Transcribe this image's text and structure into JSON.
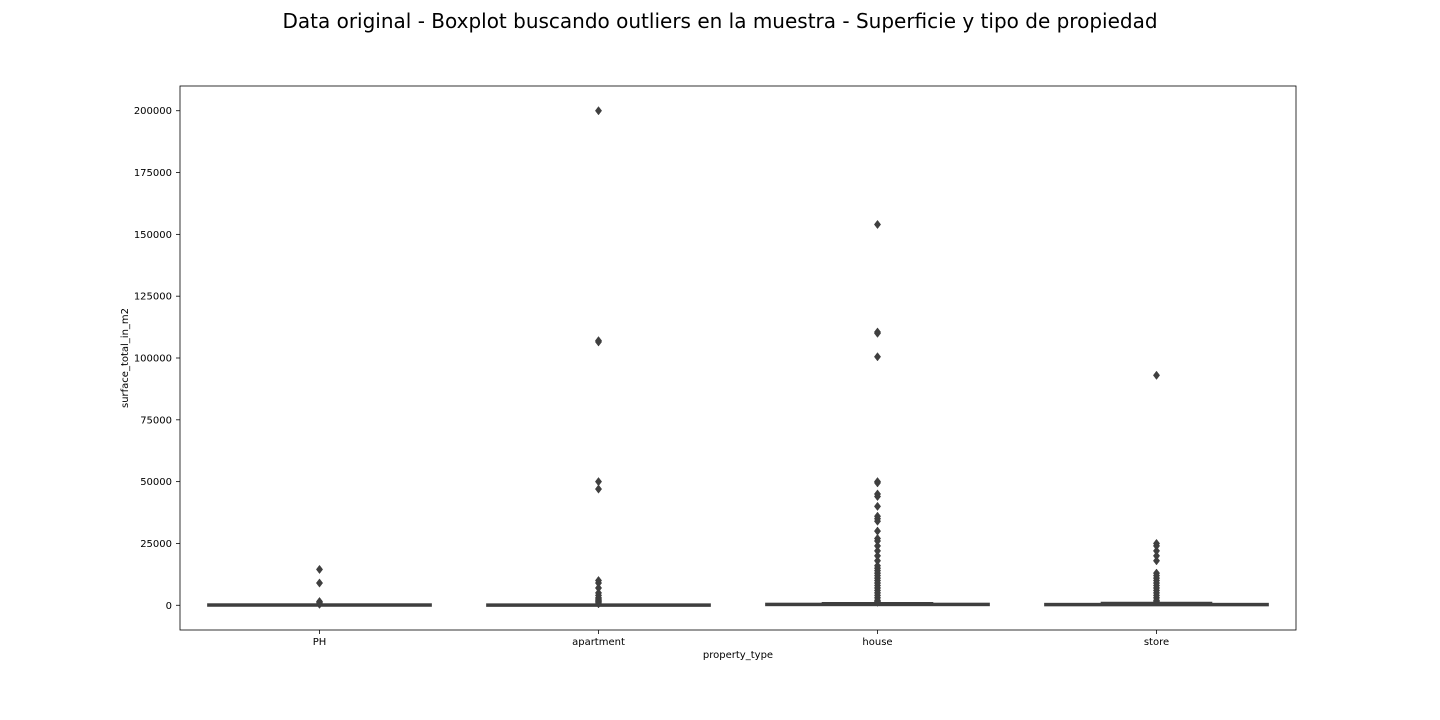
{
  "chart_data": {
    "type": "boxplot",
    "title": "Data original - Boxplot buscando outliers en la muestra - Superficie y tipo de propiedad",
    "xlabel": "property_type",
    "ylabel": "surface_total_in_m2",
    "ylim": [
      -10000,
      210000
    ],
    "yticks": [
      0,
      25000,
      50000,
      75000,
      100000,
      125000,
      150000,
      175000,
      200000
    ],
    "grid": false,
    "categories": [
      "PH",
      "apartment",
      "house",
      "store"
    ],
    "boxes": [
      {
        "category": "PH",
        "q1": 60,
        "median": 90,
        "q3": 140,
        "whisker_low": 0,
        "whisker_high": 300,
        "outliers": [
          14500,
          9000,
          1500,
          1000,
          600,
          400
        ]
      },
      {
        "category": "apartment",
        "q1": 40,
        "median": 60,
        "q3": 90,
        "whisker_low": 0,
        "whisker_high": 160,
        "outliers": [
          200000,
          107000,
          106500,
          50000,
          47000,
          10000,
          9000,
          7000,
          5000,
          4000,
          3000,
          2500,
          2000,
          1500,
          1000,
          600
        ]
      },
      {
        "category": "house",
        "q1": 180,
        "median": 300,
        "q3": 500,
        "whisker_low": 0,
        "whisker_high": 1000,
        "outliers": [
          154000,
          110500,
          110000,
          100500,
          50000,
          49500,
          45000,
          44000,
          40000,
          36000,
          35000,
          34000,
          30000,
          27000,
          26000,
          24000,
          22000,
          20000,
          18000,
          16000,
          15000,
          14000,
          13000,
          12000,
          11000,
          10000,
          9000,
          8000,
          7000,
          6000,
          5000,
          4000,
          3000,
          2000,
          1500,
          1200
        ]
      },
      {
        "category": "store",
        "q1": 50,
        "median": 150,
        "q3": 500,
        "whisker_low": 0,
        "whisker_high": 1100,
        "outliers": [
          93000,
          25000,
          24000,
          22000,
          20000,
          18000,
          13000,
          12000,
          11000,
          10000,
          9000,
          8000,
          7000,
          6000,
          5000,
          4000,
          3000,
          2000,
          1500
        ]
      }
    ],
    "colors": {
      "box_fill": "#4c4c4c",
      "line": "#3f3f3f",
      "outlier": "#3f3f3f"
    }
  }
}
